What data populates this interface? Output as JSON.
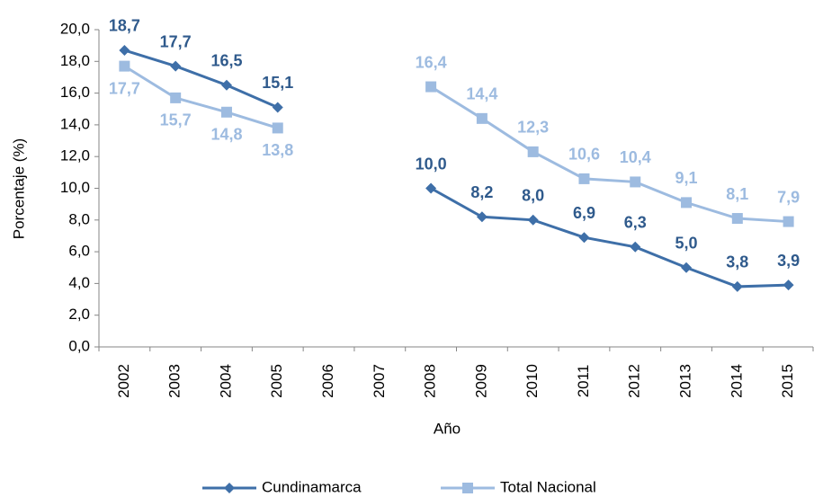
{
  "chart_data": {
    "type": "line",
    "x_label": "Año",
    "y_label": "Porcentaje (%)",
    "categories": [
      "2002",
      "2003",
      "2004",
      "2005",
      "2006",
      "2007",
      "2008",
      "2009",
      "2010",
      "2011",
      "2012",
      "2013",
      "2014",
      "2015"
    ],
    "series": [
      {
        "name": "Cundinamarca",
        "color": "#3e6fa8",
        "label_color": "#2f5a8c",
        "marker": "diamond",
        "values": [
          18.7,
          17.7,
          16.5,
          15.1,
          null,
          null,
          10.0,
          8.2,
          8.0,
          6.9,
          6.3,
          5.0,
          3.8,
          3.9
        ],
        "value_labels": [
          "18,7",
          "17,7",
          "16,5",
          "15,1",
          null,
          null,
          "10,0",
          "8,2",
          "8,0",
          "6,9",
          "6,3",
          "5,0",
          "3,8",
          "3,9"
        ]
      },
      {
        "name": "Total Nacional",
        "color": "#9dbbe0",
        "label_color": "#9dbbe0",
        "marker": "square",
        "values": [
          17.7,
          15.7,
          14.8,
          13.8,
          null,
          null,
          16.4,
          14.4,
          12.3,
          10.6,
          10.4,
          9.1,
          8.1,
          7.9
        ],
        "value_labels": [
          "17,7",
          "15,7",
          "14,8",
          "13,8",
          null,
          null,
          "16,4",
          "14,4",
          "12,3",
          "10,6",
          "10,4",
          "9,1",
          "8,1",
          "7,9"
        ]
      }
    ],
    "ylim": [
      0,
      20
    ],
    "yticks": [
      {
        "value": 0,
        "label": "0,0"
      },
      {
        "value": 2,
        "label": "2,0"
      },
      {
        "value": 4,
        "label": "4,0"
      },
      {
        "value": 6,
        "label": "6,0"
      },
      {
        "value": 8,
        "label": "8,0"
      },
      {
        "value": 10,
        "label": "10,0"
      },
      {
        "value": 12,
        "label": "12,0"
      },
      {
        "value": 14,
        "label": "14,0"
      },
      {
        "value": 16,
        "label": "16,0"
      },
      {
        "value": 18,
        "label": "18,0"
      },
      {
        "value": 20,
        "label": "20,0"
      }
    ],
    "grid": false,
    "legend": "bottom"
  }
}
